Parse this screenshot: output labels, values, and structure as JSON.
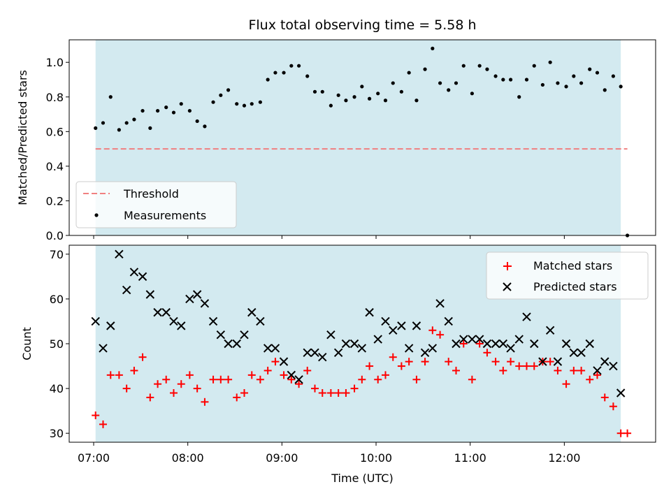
{
  "chart_data": [
    {
      "type": "scatter",
      "title": "Flux total observing time = 5.58 h",
      "xlabel": "",
      "ylabel": "Matched/Predicted stars",
      "xlim": [
        6.74,
        12.97
      ],
      "ylim": [
        0,
        1.13
      ],
      "yticks": [
        0.0,
        0.2,
        0.4,
        0.6,
        0.8,
        1.0
      ],
      "ytick_labels": [
        "0.0",
        "0.2",
        "0.4",
        "0.6",
        "0.8",
        "1.0"
      ],
      "shaded_span": [
        7.02,
        12.6
      ],
      "shade_color": "#d3eaf0",
      "threshold": {
        "name": "Threshold",
        "value": 0.5,
        "x_range": [
          7.02,
          12.67
        ],
        "color": "#f08080"
      },
      "legend": {
        "placement": "lower-left",
        "entries": [
          "Threshold",
          "Measurements"
        ]
      },
      "series": [
        {
          "name": "Measurements",
          "marker": "dot",
          "color": "#000000",
          "x": [
            7.02,
            7.1,
            7.18,
            7.27,
            7.35,
            7.43,
            7.52,
            7.6,
            7.68,
            7.77,
            7.85,
            7.93,
            8.02,
            8.1,
            8.18,
            8.27,
            8.35,
            8.43,
            8.52,
            8.6,
            8.68,
            8.77,
            8.85,
            8.93,
            9.02,
            9.1,
            9.18,
            9.27,
            9.35,
            9.43,
            9.52,
            9.6,
            9.68,
            9.77,
            9.85,
            9.93,
            10.02,
            10.1,
            10.18,
            10.27,
            10.35,
            10.43,
            10.52,
            10.6,
            10.68,
            10.77,
            10.85,
            10.93,
            11.02,
            11.1,
            11.18,
            11.27,
            11.35,
            11.43,
            11.52,
            11.6,
            11.68,
            11.77,
            11.85,
            11.93,
            12.02,
            12.1,
            12.18,
            12.27,
            12.35,
            12.43,
            12.52,
            12.6,
            12.67
          ],
          "y": [
            0.62,
            0.65,
            0.8,
            0.61,
            0.65,
            0.67,
            0.72,
            0.62,
            0.72,
            0.74,
            0.71,
            0.76,
            0.72,
            0.66,
            0.63,
            0.77,
            0.81,
            0.84,
            0.76,
            0.75,
            0.76,
            0.77,
            0.9,
            0.94,
            0.94,
            0.98,
            0.98,
            0.92,
            0.83,
            0.83,
            0.75,
            0.81,
            0.78,
            0.8,
            0.86,
            0.79,
            0.82,
            0.78,
            0.88,
            0.83,
            0.94,
            0.78,
            0.96,
            1.08,
            0.88,
            0.84,
            0.88,
            0.98,
            0.82,
            0.98,
            0.96,
            0.92,
            0.9,
            0.9,
            0.8,
            0.9,
            0.98,
            0.87,
            1.0,
            0.88,
            0.86,
            0.92,
            0.88,
            0.96,
            0.94,
            0.84,
            0.92,
            0.86,
            0.0
          ]
        }
      ]
    },
    {
      "type": "scatter",
      "title": "",
      "xlabel": "Time (UTC)",
      "ylabel": "Count",
      "xlim": [
        6.74,
        12.97
      ],
      "ylim": [
        28,
        72
      ],
      "yticks": [
        30,
        40,
        50,
        60,
        70
      ],
      "ytick_labels": [
        "30",
        "40",
        "50",
        "60",
        "70"
      ],
      "xticks": [
        7,
        8,
        9,
        10,
        11,
        12
      ],
      "xtick_labels": [
        "07:00",
        "08:00",
        "09:00",
        "10:00",
        "11:00",
        "12:00"
      ],
      "shaded_span": [
        7.02,
        12.6
      ],
      "shade_color": "#d3eaf0",
      "legend": {
        "placement": "top-right",
        "entries": [
          "Matched stars",
          "Predicted stars"
        ]
      },
      "series": [
        {
          "name": "Matched stars",
          "marker": "plus",
          "color": "#ff0000",
          "x": [
            7.02,
            7.1,
            7.18,
            7.27,
            7.35,
            7.43,
            7.52,
            7.6,
            7.68,
            7.77,
            7.85,
            7.93,
            8.02,
            8.1,
            8.18,
            8.27,
            8.35,
            8.43,
            8.52,
            8.6,
            8.68,
            8.77,
            8.85,
            8.93,
            9.02,
            9.1,
            9.18,
            9.27,
            9.35,
            9.43,
            9.52,
            9.6,
            9.68,
            9.77,
            9.85,
            9.93,
            10.02,
            10.1,
            10.18,
            10.27,
            10.35,
            10.43,
            10.52,
            10.6,
            10.68,
            10.77,
            10.85,
            10.93,
            11.02,
            11.1,
            11.18,
            11.27,
            11.35,
            11.43,
            11.52,
            11.6,
            11.68,
            11.77,
            11.85,
            11.93,
            12.02,
            12.1,
            12.18,
            12.27,
            12.35,
            12.43,
            12.52,
            12.6,
            12.67
          ],
          "y": [
            34,
            32,
            43,
            43,
            40,
            44,
            47,
            38,
            41,
            42,
            39,
            41,
            43,
            40,
            37,
            42,
            42,
            42,
            38,
            39,
            43,
            42,
            44,
            46,
            43,
            42,
            41,
            44,
            40,
            39,
            39,
            39,
            39,
            40,
            42,
            45,
            42,
            43,
            47,
            45,
            46,
            42,
            46,
            53,
            52,
            46,
            44,
            50,
            42,
            50,
            48,
            46,
            44,
            46,
            45,
            45,
            45,
            46,
            46,
            44,
            41,
            44,
            44,
            42,
            43,
            38,
            36,
            30,
            30
          ]
        },
        {
          "name": "Predicted stars",
          "marker": "x",
          "color": "#000000",
          "x": [
            7.02,
            7.1,
            7.18,
            7.27,
            7.35,
            7.43,
            7.52,
            7.6,
            7.68,
            7.77,
            7.85,
            7.93,
            8.02,
            8.1,
            8.18,
            8.27,
            8.35,
            8.43,
            8.52,
            8.6,
            8.68,
            8.77,
            8.85,
            8.93,
            9.02,
            9.1,
            9.18,
            9.27,
            9.35,
            9.43,
            9.52,
            9.6,
            9.68,
            9.77,
            9.85,
            9.93,
            10.02,
            10.1,
            10.18,
            10.27,
            10.35,
            10.43,
            10.52,
            10.6,
            10.68,
            10.77,
            10.85,
            10.93,
            11.02,
            11.1,
            11.18,
            11.27,
            11.35,
            11.43,
            11.52,
            11.6,
            11.68,
            11.77,
            11.85,
            11.93,
            12.02,
            12.1,
            12.18,
            12.27,
            12.35,
            12.43,
            12.52,
            12.6
          ],
          "y": [
            55,
            49,
            54,
            70,
            62,
            66,
            65,
            61,
            57,
            57,
            55,
            54,
            60,
            61,
            59,
            55,
            52,
            50,
            50,
            52,
            57,
            55,
            49,
            49,
            46,
            43,
            42,
            48,
            48,
            47,
            52,
            48,
            50,
            50,
            49,
            57,
            51,
            55,
            53,
            54,
            49,
            54,
            48,
            49,
            59,
            55,
            50,
            51,
            51,
            51,
            50,
            50,
            50,
            49,
            51,
            56,
            50,
            46,
            53,
            46,
            50,
            48,
            48,
            50,
            44,
            46,
            45,
            39
          ]
        }
      ]
    }
  ]
}
